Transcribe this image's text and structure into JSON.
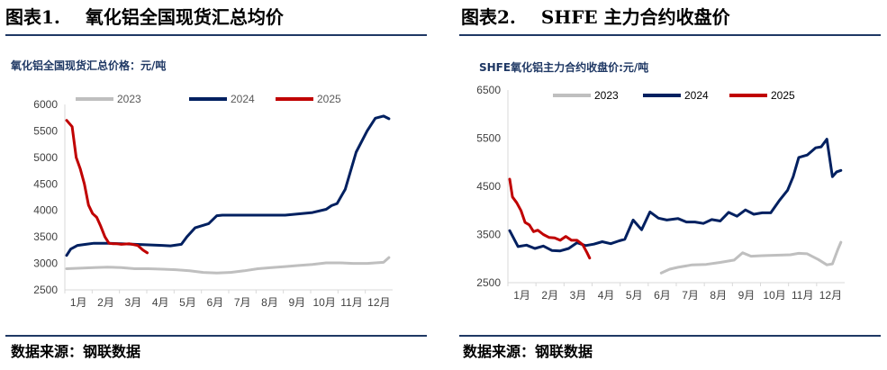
{
  "figures": [
    {
      "label": "图表1.",
      "title": "氧化铝全国现货汇总均价",
      "source": "数据来源：钢联数据",
      "chart_data": {
        "type": "line",
        "title": "氧化铝全国现货汇总价格：元/吨",
        "xlabel": "",
        "ylabel": "",
        "ylim": [
          2500,
          6000
        ],
        "yticks": [
          "2500",
          "3000",
          "3500",
          "4000",
          "4500",
          "5000",
          "5500",
          "6000"
        ],
        "xticks": [
          "1月",
          "2月",
          "3月",
          "4月",
          "5月",
          "6月",
          "7月",
          "8月",
          "9月",
          "10月",
          "11月",
          "12月"
        ],
        "x_range": [
          0,
          11.8
        ],
        "grid": false,
        "legend": "top",
        "series": [
          {
            "name": "2023",
            "color": "#bfbfbf",
            "x": [
              0,
              0.5,
              1,
              1.5,
              2,
              2.5,
              3,
              3.5,
              4,
              4.5,
              5,
              5.5,
              6,
              6.5,
              7,
              7.5,
              8,
              8.5,
              9,
              9.5,
              10,
              10.5,
              11,
              11.3,
              11.6,
              11.8
            ],
            "y": [
              2900,
              2910,
              2920,
              2930,
              2920,
              2900,
              2900,
              2890,
              2880,
              2860,
              2830,
              2820,
              2830,
              2860,
              2900,
              2920,
              2940,
              2960,
              2980,
              3010,
              3010,
              3000,
              3000,
              3010,
              3020,
              3110
            ]
          },
          {
            "name": "2024",
            "color": "#002060",
            "x": [
              0,
              0.15,
              0.4,
              0.7,
              1,
              1.5,
              2,
              2.5,
              3,
              3.5,
              3.8,
              4.2,
              4.4,
              4.7,
              5.2,
              5.5,
              5.7,
              6,
              7,
              8,
              9,
              9.5,
              9.7,
              9.9,
              10.2,
              10.6,
              11,
              11.3,
              11.6,
              11.8
            ],
            "y": [
              3150,
              3270,
              3340,
              3360,
              3380,
              3380,
              3370,
              3360,
              3350,
              3340,
              3330,
              3360,
              3500,
              3670,
              3750,
              3900,
              3910,
              3910,
              3910,
              3910,
              3960,
              4020,
              4090,
              4130,
              4400,
              5100,
              5500,
              5740,
              5780,
              5730
            ]
          },
          {
            "name": "2025",
            "color": "#c00000",
            "x": [
              0,
              0.2,
              0.35,
              0.5,
              0.65,
              0.8,
              0.95,
              1.1,
              1.25,
              1.4,
              1.55,
              1.7,
              1.85,
              2,
              2.3,
              2.6,
              2.8,
              2.95
            ],
            "y": [
              5700,
              5580,
              5000,
              4780,
              4500,
              4100,
              3940,
              3870,
              3700,
              3500,
              3380,
              3370,
              3370,
              3360,
              3370,
              3340,
              3250,
              3200
            ]
          }
        ]
      }
    },
    {
      "label": "图表2.",
      "title": "SHFE 主力合约收盘价",
      "source": "数据来源：钢联数据",
      "chart_data": {
        "type": "line",
        "title": "SHFE氧化铝主力合约收盘价:元/吨",
        "xlabel": "",
        "ylabel": "",
        "ylim": [
          2500,
          6500
        ],
        "yticks": [
          "2500",
          "3500",
          "4500",
          "5500",
          "6500"
        ],
        "xticks": [
          "1月",
          "2月",
          "3月",
          "4月",
          "5月",
          "6月",
          "7月",
          "8月",
          "9月",
          "10月",
          "11月",
          "12月"
        ],
        "x_range": [
          0,
          11.8
        ],
        "grid": false,
        "legend": "top",
        "series": [
          {
            "name": "2023",
            "color": "#bfbfbf",
            "x": [
              5.4,
              5.7,
              6,
              6.5,
              7,
              7.5,
              8,
              8.3,
              8.6,
              9,
              9.5,
              10,
              10.3,
              10.6,
              11,
              11.3,
              11.5,
              11.7,
              11.8
            ],
            "y": [
              2700,
              2780,
              2820,
              2870,
              2880,
              2920,
              2970,
              3120,
              3050,
              3060,
              3070,
              3080,
              3110,
              3100,
              2980,
              2870,
              2890,
              3200,
              3340
            ]
          },
          {
            "name": "2024",
            "color": "#002060",
            "x": [
              0,
              0.3,
              0.6,
              0.9,
              1.2,
              1.5,
              1.8,
              2.1,
              2.4,
              2.7,
              3,
              3.3,
              3.6,
              3.9,
              4.1,
              4.4,
              4.7,
              5,
              5.3,
              5.6,
              6,
              6.3,
              6.6,
              6.9,
              7.2,
              7.5,
              7.8,
              8.1,
              8.4,
              8.7,
              9,
              9.3,
              9.6,
              9.9,
              10.1,
              10.3,
              10.6,
              10.9,
              11.1,
              11.3,
              11.5,
              11.65,
              11.8
            ],
            "y": [
              3580,
              3250,
              3280,
              3210,
              3260,
              3170,
              3160,
              3210,
              3330,
              3270,
              3300,
              3350,
              3310,
              3370,
              3400,
              3800,
              3600,
              3970,
              3840,
              3800,
              3830,
              3760,
              3760,
              3730,
              3810,
              3780,
              3960,
              3880,
              4010,
              3920,
              3950,
              3950,
              4200,
              4420,
              4700,
              5100,
              5150,
              5300,
              5320,
              5480,
              4700,
              4800,
              4830
            ]
          },
          {
            "name": "2025",
            "color": "#c00000",
            "x": [
              0,
              0.1,
              0.25,
              0.4,
              0.55,
              0.7,
              0.85,
              1,
              1.2,
              1.4,
              1.6,
              1.8,
              2,
              2.2,
              2.4,
              2.6,
              2.75,
              2.85
            ],
            "y": [
              4650,
              4280,
              4160,
              4000,
              3750,
              3700,
              3560,
              3590,
              3500,
              3440,
              3430,
              3380,
              3460,
              3380,
              3380,
              3290,
              3130,
              3010
            ]
          }
        ]
      }
    }
  ]
}
